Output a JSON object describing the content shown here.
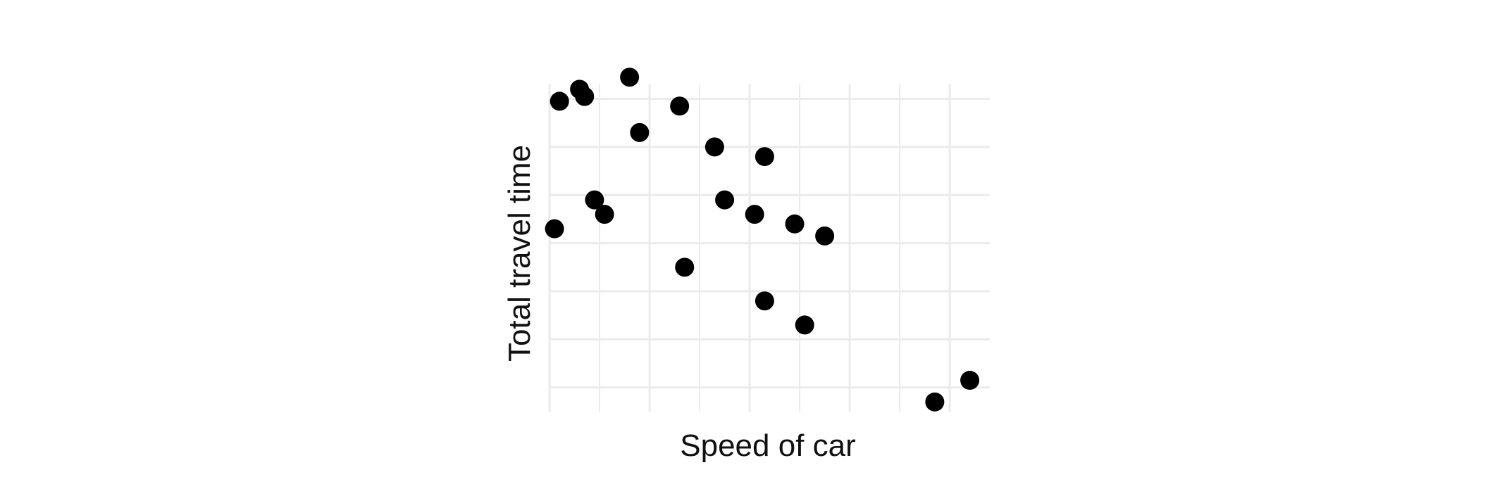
{
  "chart_data": {
    "type": "scatter",
    "xlabel": "Speed of car",
    "ylabel": "Total travel time",
    "xlim": [
      0,
      22
    ],
    "ylim": [
      0,
      13.6
    ],
    "x_gridlines": [
      0,
      2.5,
      5,
      7.5,
      10,
      12.5,
      15,
      17.5,
      20
    ],
    "y_gridlines": [
      1,
      3,
      5,
      7,
      9,
      11,
      13
    ],
    "show_tick_labels": false,
    "grid": true,
    "points": [
      {
        "x": 0.25,
        "y": 7.6
      },
      {
        "x": 0.5,
        "y": 12.9
      },
      {
        "x": 1.5,
        "y": 13.4
      },
      {
        "x": 1.75,
        "y": 13.1
      },
      {
        "x": 2.25,
        "y": 8.8
      },
      {
        "x": 2.75,
        "y": 8.2
      },
      {
        "x": 4.0,
        "y": 13.9
      },
      {
        "x": 4.5,
        "y": 11.6
      },
      {
        "x": 6.5,
        "y": 12.7
      },
      {
        "x": 6.75,
        "y": 6.0
      },
      {
        "x": 8.25,
        "y": 11.0
      },
      {
        "x": 8.75,
        "y": 8.8
      },
      {
        "x": 10.25,
        "y": 8.2
      },
      {
        "x": 10.75,
        "y": 10.6
      },
      {
        "x": 10.75,
        "y": 4.6
      },
      {
        "x": 12.25,
        "y": 7.8
      },
      {
        "x": 12.75,
        "y": 3.6
      },
      {
        "x": 13.75,
        "y": 7.3
      },
      {
        "x": 19.25,
        "y": 0.4
      },
      {
        "x": 21.0,
        "y": 1.3
      }
    ]
  },
  "style": {
    "point_color": "#000000",
    "grid_color": "#ebebeb",
    "background": "#ffffff"
  }
}
